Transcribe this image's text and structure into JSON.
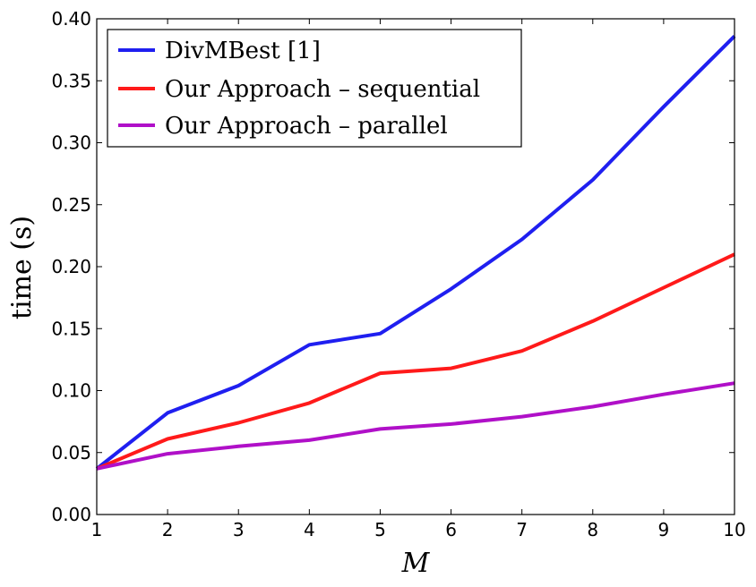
{
  "chart_data": {
    "type": "line",
    "xlabel": "M",
    "ylabel": "time (s)",
    "xlim": [
      1,
      10
    ],
    "ylim": [
      0.0,
      0.4
    ],
    "x": [
      1,
      2,
      3,
      4,
      5,
      6,
      7,
      8,
      9,
      10
    ],
    "xticks": [
      "1",
      "2",
      "3",
      "4",
      "5",
      "6",
      "7",
      "8",
      "9",
      "10"
    ],
    "yticks": [
      "0.00",
      "0.05",
      "0.10",
      "0.15",
      "0.20",
      "0.25",
      "0.30",
      "0.35",
      "0.40"
    ],
    "grid": false,
    "legend_position": "top-left",
    "series": [
      {
        "name": "DivMBest [1]",
        "color": "#1f1ff0",
        "values": [
          0.037,
          0.082,
          0.104,
          0.137,
          0.146,
          0.182,
          0.222,
          0.27,
          0.329,
          0.386
        ]
      },
      {
        "name": "Our Approach – sequential",
        "color": "#ff1a1a",
        "values": [
          0.037,
          0.061,
          0.074,
          0.09,
          0.114,
          0.118,
          0.132,
          0.156,
          0.183,
          0.21
        ]
      },
      {
        "name": "Our Approach – parallel",
        "color": "#b010c8",
        "values": [
          0.037,
          0.049,
          0.055,
          0.06,
          0.069,
          0.073,
          0.079,
          0.087,
          0.097,
          0.106
        ]
      }
    ]
  }
}
